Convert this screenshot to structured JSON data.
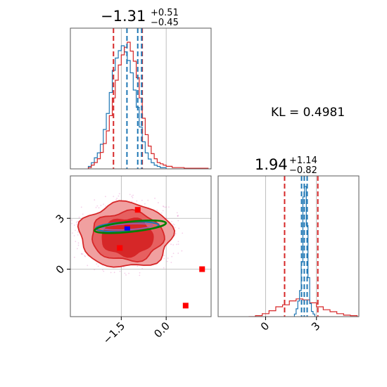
{
  "chart_data": {
    "type": "corner",
    "annotation": "KL = 0.4981",
    "parameters": [
      {
        "title_center": "−1.31",
        "title_plus": "+0.51",
        "title_minus": "−0.45",
        "median": -1.31,
        "lower": -1.76,
        "upper": -0.8,
        "range": [
          -3.2,
          1.5
        ],
        "ticks": [
          -1.5,
          0.0
        ],
        "tick_labels": [
          "−1.5",
          "0.0"
        ]
      },
      {
        "title_center": "1.94",
        "title_plus": "+1.14",
        "title_minus": "−0.82",
        "median": 1.94,
        "lower": 1.12,
        "upper": 3.08,
        "range": [
          -2.8,
          5.5
        ],
        "ticks": [
          0,
          3
        ],
        "tick_labels": [
          "0",
          "3"
        ]
      }
    ],
    "series": [
      {
        "name": "",
        "color": "#1f77b4",
        "quantile_lines_p1": [
          -0.95,
          -1.31,
          -0.82
        ],
        "quantile_lines_p2": [
          2.12,
          2.28,
          2.45
        ],
        "hist_p1": {
          "bins": [
            -2.6,
            -2.5,
            -2.4,
            -2.3,
            -2.2,
            -2.1,
            -2.0,
            -1.9,
            -1.8,
            -1.7,
            -1.6,
            -1.5,
            -1.4,
            -1.3,
            -1.2,
            -1.1,
            -1.0,
            -0.9,
            -0.8,
            -0.7,
            -0.6,
            -0.5,
            -0.4,
            -0.3,
            -0.2,
            -0.1
          ],
          "counts": [
            0.02,
            0.05,
            0.09,
            0.13,
            0.2,
            0.32,
            0.45,
            0.62,
            0.8,
            0.9,
            0.96,
            1.0,
            0.95,
            0.88,
            0.78,
            0.64,
            0.5,
            0.34,
            0.22,
            0.13,
            0.08,
            0.05,
            0.03,
            0.02,
            0.01,
            0.01
          ]
        },
        "hist_p2": {
          "bins": [
            1.7,
            1.8,
            1.9,
            2.0,
            2.1,
            2.2,
            2.3,
            2.4,
            2.5,
            2.6,
            2.7,
            2.8
          ],
          "counts": [
            0.02,
            0.06,
            0.12,
            0.2,
            0.42,
            0.92,
            1.0,
            0.7,
            0.3,
            0.1,
            0.04,
            0.02
          ]
        },
        "ellipse": {
          "center": [
            -1.3,
            2.5
          ],
          "half_width": 1.05,
          "half_height": 0.28,
          "angle_deg": -3
        }
      },
      {
        "name": "",
        "color": "#d62728",
        "quantile_lines_p1": [
          -1.76,
          -0.8
        ],
        "quantile_lines_p2": [
          1.12,
          3.08
        ],
        "hist_p1": {
          "bins": [
            -2.6,
            -2.5,
            -2.4,
            -2.3,
            -2.2,
            -2.1,
            -2.0,
            -1.9,
            -1.8,
            -1.7,
            -1.6,
            -1.5,
            -1.4,
            -1.3,
            -1.2,
            -1.1,
            -1.0,
            -0.9,
            -0.8,
            -0.7,
            -0.6,
            -0.5,
            -0.4,
            -0.3,
            -0.2,
            -0.1,
            0.0,
            0.1,
            0.2,
            0.3,
            0.4,
            0.5,
            0.6,
            0.7,
            0.8,
            0.9,
            1.0,
            1.1,
            1.2,
            1.3
          ],
          "counts": [
            0.01,
            0.03,
            0.05,
            0.08,
            0.13,
            0.2,
            0.3,
            0.42,
            0.56,
            0.7,
            0.82,
            0.9,
            0.96,
            1.0,
            0.93,
            0.85,
            0.72,
            0.56,
            0.4,
            0.27,
            0.18,
            0.12,
            0.08,
            0.05,
            0.04,
            0.03,
            0.02,
            0.02,
            0.01,
            0.01,
            0.01,
            0.01,
            0.005,
            0.005,
            0.005,
            0.005,
            0.005,
            0.005,
            0.005,
            0.005
          ]
        },
        "hist_p2": {
          "bins": [
            -1.0,
            -0.6,
            -0.2,
            0.2,
            0.6,
            1.0,
            1.4,
            1.8,
            2.2,
            2.6,
            3.0,
            3.4,
            3.8,
            4.2,
            4.6,
            5.0
          ],
          "counts": [
            0.0,
            0.01,
            0.03,
            0.06,
            0.1,
            0.12,
            0.16,
            0.18,
            0.17,
            0.14,
            0.1,
            0.07,
            0.05,
            0.03,
            0.015,
            0.01
          ]
        },
        "contours": [
          {
            "center": [
              -1.35,
              2.0
            ],
            "rx": 1.55,
            "ry": 1.9,
            "fill": "#f0a0a0"
          },
          {
            "center": [
              -1.3,
              1.95
            ],
            "rx": 1.2,
            "ry": 1.45,
            "fill": "#e66060"
          },
          {
            "center": [
              -1.3,
              1.9
            ],
            "rx": 0.85,
            "ry": 1.1,
            "fill": "#d62728"
          }
        ],
        "outlier_points": [
          [
            -1.55,
            1.25
          ],
          [
            -1.3,
            2.45
          ],
          [
            -0.95,
            3.5
          ],
          [
            1.2,
            0.0
          ],
          [
            0.65,
            -2.15
          ]
        ]
      },
      {
        "name": "",
        "color": "#008000",
        "ellipse": {
          "center": [
            -1.2,
            2.5
          ],
          "half_width": 1.2,
          "half_height": 0.3,
          "angle_deg": -6
        }
      }
    ],
    "center_marker": {
      "point": [
        -1.3,
        2.4
      ],
      "color": "#0000ff"
    },
    "grid": true,
    "legend": "none"
  }
}
